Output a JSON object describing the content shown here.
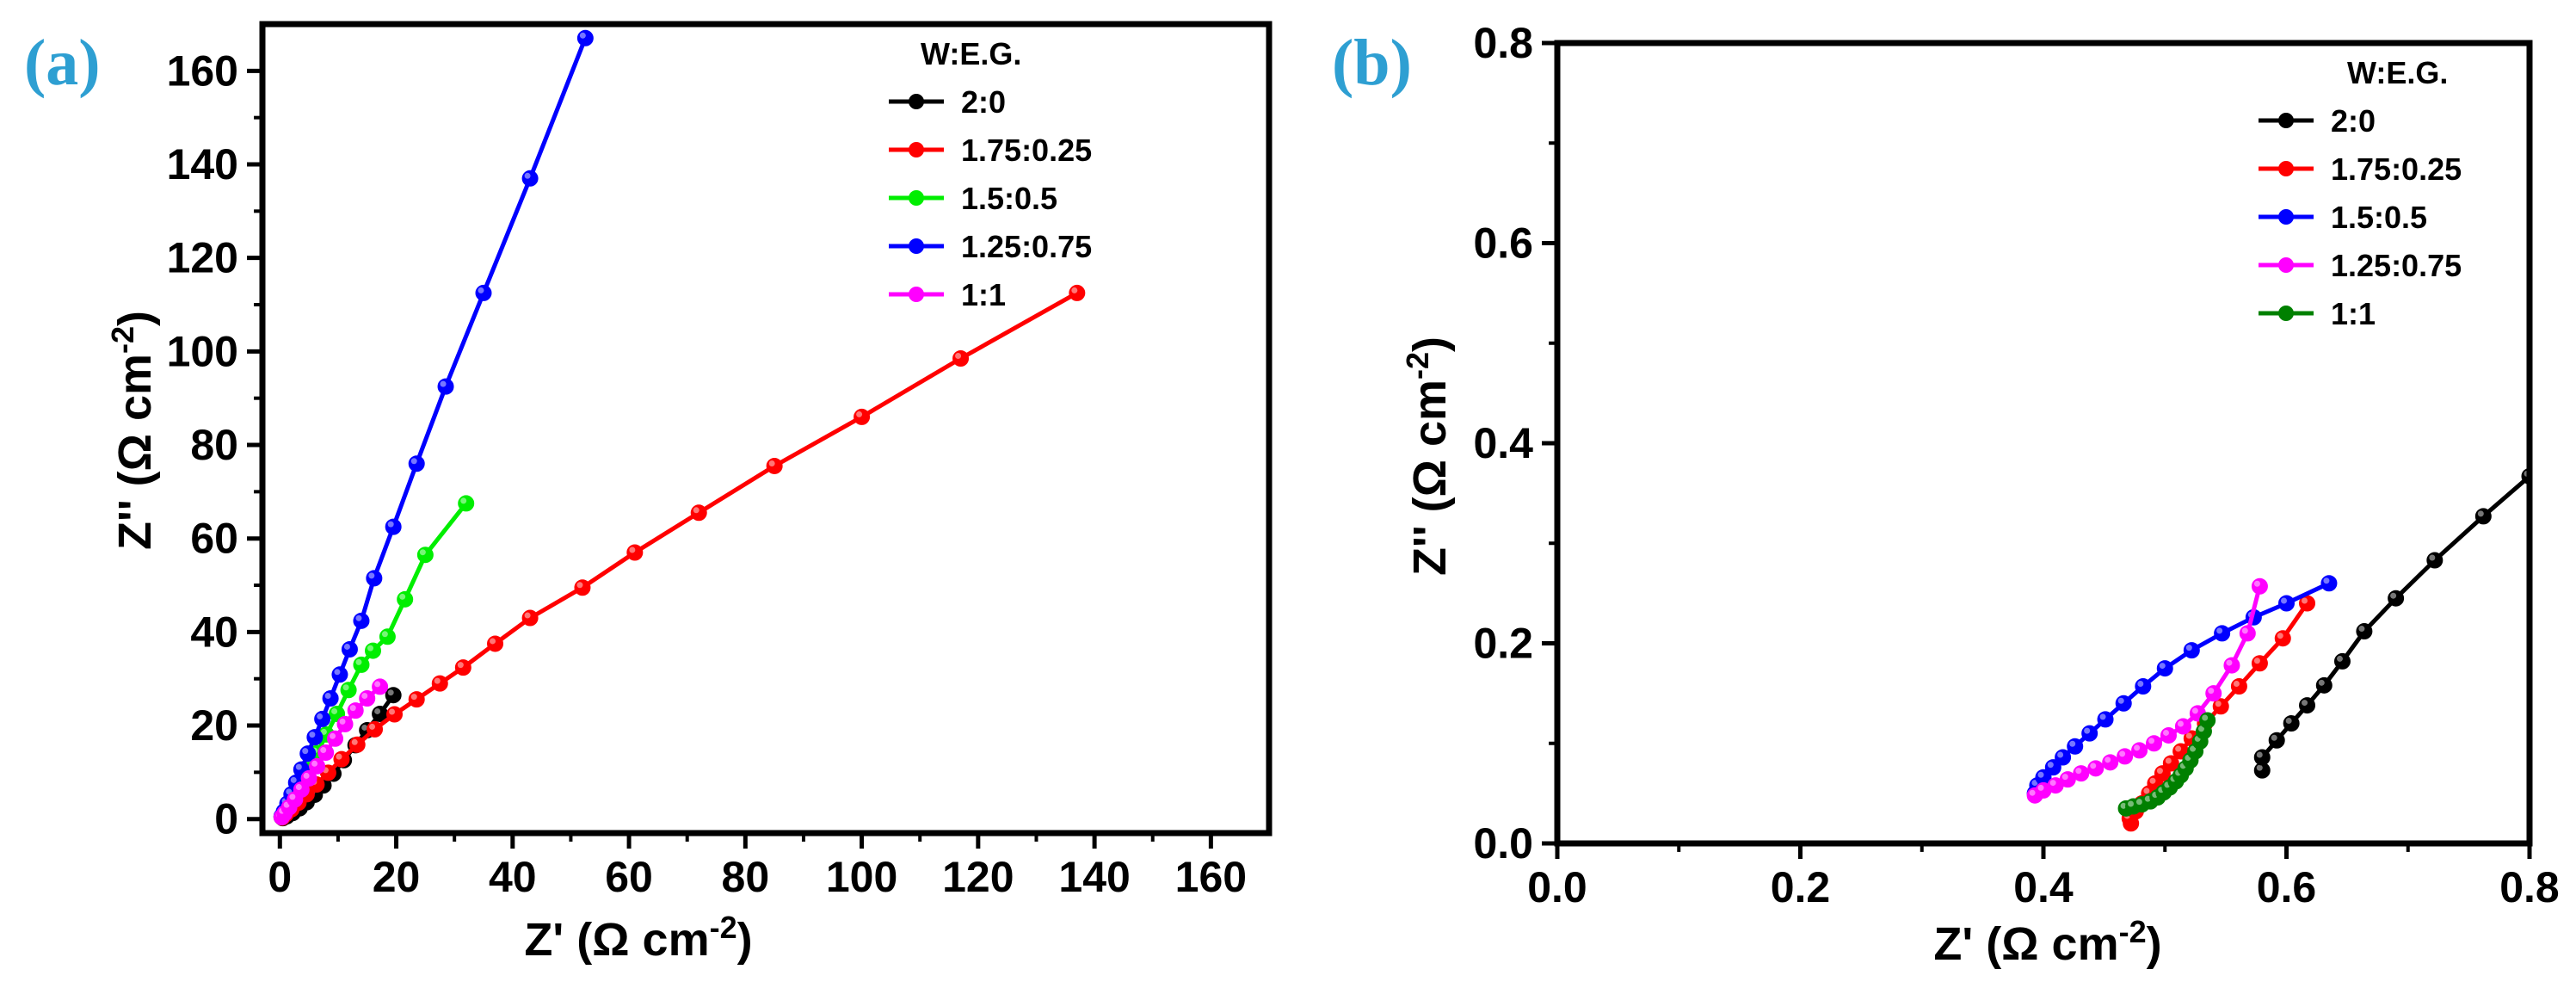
{
  "chart_data": [
    {
      "panel_label": "(a)",
      "type": "scatter",
      "markers": "line+circles",
      "xlabel_main": "Z' (Ω cm",
      "xlabel_sup": "-2",
      "xlabel_close": ")",
      "ylabel_main": "Z'' (Ω cm",
      "ylabel_sup": "-2",
      "ylabel_close": ")",
      "xlim": [
        -3,
        170
      ],
      "ylim": [
        -3,
        170
      ],
      "xticks": [
        0,
        20,
        40,
        60,
        80,
        100,
        120,
        140,
        160
      ],
      "yticks": [
        0,
        20,
        40,
        60,
        80,
        100,
        120,
        140,
        160
      ],
      "legend_title": "W:E.G.",
      "legend_position": "top-right",
      "series": [
        {
          "name": "2:0",
          "color": "#000000",
          "points": [
            [
              0.5,
              0.2
            ],
            [
              1.2,
              0.6
            ],
            [
              2.2,
              1.3
            ],
            [
              3.4,
              2.3
            ],
            [
              4.6,
              3.6
            ],
            [
              6,
              5.2
            ],
            [
              7.5,
              7.2
            ],
            [
              9.2,
              9.7
            ],
            [
              11,
              12.6
            ],
            [
              13,
              15.8
            ],
            [
              15,
              19
            ],
            [
              17.2,
              22.5
            ],
            [
              19.5,
              26.5
            ]
          ]
        },
        {
          "name": "1.75:0.25",
          "color": "#ff0000",
          "points": [
            [
              0.4,
              0.3
            ],
            [
              1,
              1
            ],
            [
              2,
              2.1
            ],
            [
              3.2,
              3.5
            ],
            [
              4.6,
              5.3
            ],
            [
              6.3,
              7.4
            ],
            [
              8.3,
              9.9
            ],
            [
              10.6,
              12.8
            ],
            [
              13.3,
              15.9
            ],
            [
              16.3,
              19.2
            ],
            [
              19.7,
              22.4
            ],
            [
              23.5,
              25.6
            ],
            [
              27.5,
              29
            ],
            [
              31.5,
              32.4
            ],
            [
              37,
              37.5
            ],
            [
              43,
              43
            ],
            [
              52,
              49.5
            ],
            [
              61,
              57
            ],
            [
              72,
              65.5
            ],
            [
              85,
              75.5
            ],
            [
              100,
              86
            ],
            [
              117,
              98.5
            ],
            [
              137,
              112.5
            ]
          ]
        },
        {
          "name": "1.5:0.5",
          "color": "#00ee00",
          "points": [
            [
              0.3,
              0.4
            ],
            [
              0.8,
              1.3
            ],
            [
              1.6,
              2.8
            ],
            [
              2.5,
              4.8
            ],
            [
              3.6,
              7.3
            ],
            [
              4.9,
              10.5
            ],
            [
              6.4,
              14.1
            ],
            [
              8,
              18.1
            ],
            [
              9.8,
              22.5
            ],
            [
              11.8,
              27.6
            ],
            [
              14,
              33
            ],
            [
              16,
              36
            ],
            [
              18.5,
              39
            ],
            [
              21.5,
              47
            ],
            [
              25,
              56.5
            ],
            [
              32,
              67.5
            ]
          ]
        },
        {
          "name": "1.25:0.75",
          "color": "#0000ff",
          "points": [
            [
              0.3,
              0.6
            ],
            [
              0.7,
              1.6
            ],
            [
              1.3,
              3.3
            ],
            [
              2,
              5.3
            ],
            [
              2.8,
              7.8
            ],
            [
              3.7,
              10.6
            ],
            [
              4.8,
              14
            ],
            [
              6,
              17.5
            ],
            [
              7.3,
              21.4
            ],
            [
              8.7,
              25.8
            ],
            [
              10.3,
              30.9
            ],
            [
              12,
              36.3
            ],
            [
              14,
              42.4
            ],
            [
              16.2,
              51.5
            ],
            [
              19.5,
              62.5
            ],
            [
              23.5,
              76
            ],
            [
              28.5,
              92.5
            ],
            [
              35,
              112.5
            ],
            [
              43,
              137
            ],
            [
              52.5,
              167
            ]
          ]
        },
        {
          "name": "1:1",
          "color": "#ff00ff",
          "points": [
            [
              0.3,
              0.4
            ],
            [
              0.8,
              1.2
            ],
            [
              1.6,
              2.5
            ],
            [
              2.6,
              4.2
            ],
            [
              3.7,
              6.3
            ],
            [
              5,
              8.7
            ],
            [
              6.4,
              11.3
            ],
            [
              7.9,
              14.2
            ],
            [
              9.5,
              17.2
            ],
            [
              11.2,
              20.3
            ],
            [
              13,
              23.2
            ],
            [
              15,
              25.8
            ],
            [
              17.2,
              28.3
            ]
          ]
        }
      ]
    },
    {
      "panel_label": "(b)",
      "type": "scatter",
      "markers": "line+circles",
      "xlabel_main": "Z' (Ω cm",
      "xlabel_sup": "-2",
      "xlabel_close": ")",
      "ylabel_main": "Z'' (Ω cm",
      "ylabel_sup": "-2",
      "ylabel_close": ")",
      "xlim": [
        0,
        0.8
      ],
      "ylim": [
        0,
        0.8
      ],
      "xticks": [
        "0.0",
        "0.2",
        "0.4",
        "0.6",
        "0.8"
      ],
      "yticks": [
        "0.0",
        "0.2",
        "0.4",
        "0.6",
        "0.8"
      ],
      "legend_title": "W:E.G.",
      "legend_position": "top-right",
      "series": [
        {
          "name": "2:0",
          "color": "#000000",
          "points": [
            [
              0.58,
              0.073
            ],
            [
              0.58,
              0.086
            ],
            [
              0.592,
              0.103
            ],
            [
              0.604,
              0.12
            ],
            [
              0.617,
              0.138
            ],
            [
              0.631,
              0.158
            ],
            [
              0.646,
              0.182
            ],
            [
              0.664,
              0.212
            ],
            [
              0.69,
              0.245
            ],
            [
              0.722,
              0.283
            ],
            [
              0.762,
              0.327
            ],
            [
              0.8,
              0.367
            ]
          ]
        },
        {
          "name": "1.75:0.25",
          "color": "#ff0000",
          "points": [
            [
              0.472,
              0.02
            ],
            [
              0.471,
              0.025
            ],
            [
              0.476,
              0.032
            ],
            [
              0.481,
              0.04
            ],
            [
              0.487,
              0.05
            ],
            [
              0.492,
              0.06
            ],
            [
              0.498,
              0.07
            ],
            [
              0.505,
              0.08
            ],
            [
              0.513,
              0.092
            ],
            [
              0.522,
              0.105
            ],
            [
              0.533,
              0.12
            ],
            [
              0.546,
              0.137
            ],
            [
              0.561,
              0.157
            ],
            [
              0.578,
              0.18
            ],
            [
              0.597,
              0.205
            ],
            [
              0.617,
              0.24
            ]
          ]
        },
        {
          "name": "1.5:0.5",
          "color": "#0000ff",
          "points": [
            [
              0.393,
              0.05
            ],
            [
              0.395,
              0.058
            ],
            [
              0.4,
              0.066
            ],
            [
              0.408,
              0.076
            ],
            [
              0.416,
              0.086
            ],
            [
              0.426,
              0.097
            ],
            [
              0.438,
              0.11
            ],
            [
              0.451,
              0.124
            ],
            [
              0.466,
              0.14
            ],
            [
              0.482,
              0.157
            ],
            [
              0.5,
              0.175
            ],
            [
              0.522,
              0.193
            ],
            [
              0.547,
              0.21
            ],
            [
              0.573,
              0.226
            ],
            [
              0.6,
              0.24
            ],
            [
              0.635,
              0.26
            ]
          ]
        },
        {
          "name": "1.25:0.75",
          "color": "#ff00ff",
          "points": [
            [
              0.393,
              0.048
            ],
            [
              0.4,
              0.053
            ],
            [
              0.41,
              0.058
            ],
            [
              0.42,
              0.064
            ],
            [
              0.431,
              0.07
            ],
            [
              0.443,
              0.075
            ],
            [
              0.455,
              0.081
            ],
            [
              0.467,
              0.087
            ],
            [
              0.479,
              0.093
            ],
            [
              0.491,
              0.1
            ],
            [
              0.503,
              0.108
            ],
            [
              0.515,
              0.117
            ],
            [
              0.527,
              0.13
            ],
            [
              0.54,
              0.15
            ],
            [
              0.555,
              0.178
            ],
            [
              0.568,
              0.21
            ],
            [
              0.578,
              0.257
            ]
          ]
        },
        {
          "name": "1:1",
          "color": "#008000",
          "points": [
            [
              0.468,
              0.035
            ],
            [
              0.474,
              0.037
            ],
            [
              0.481,
              0.039
            ],
            [
              0.488,
              0.042
            ],
            [
              0.494,
              0.046
            ],
            [
              0.499,
              0.051
            ],
            [
              0.504,
              0.056
            ],
            [
              0.509,
              0.062
            ],
            [
              0.513,
              0.068
            ],
            [
              0.517,
              0.075
            ],
            [
              0.521,
              0.083
            ],
            [
              0.525,
              0.092
            ],
            [
              0.529,
              0.102
            ],
            [
              0.532,
              0.112
            ],
            [
              0.535,
              0.123
            ]
          ]
        }
      ]
    }
  ]
}
